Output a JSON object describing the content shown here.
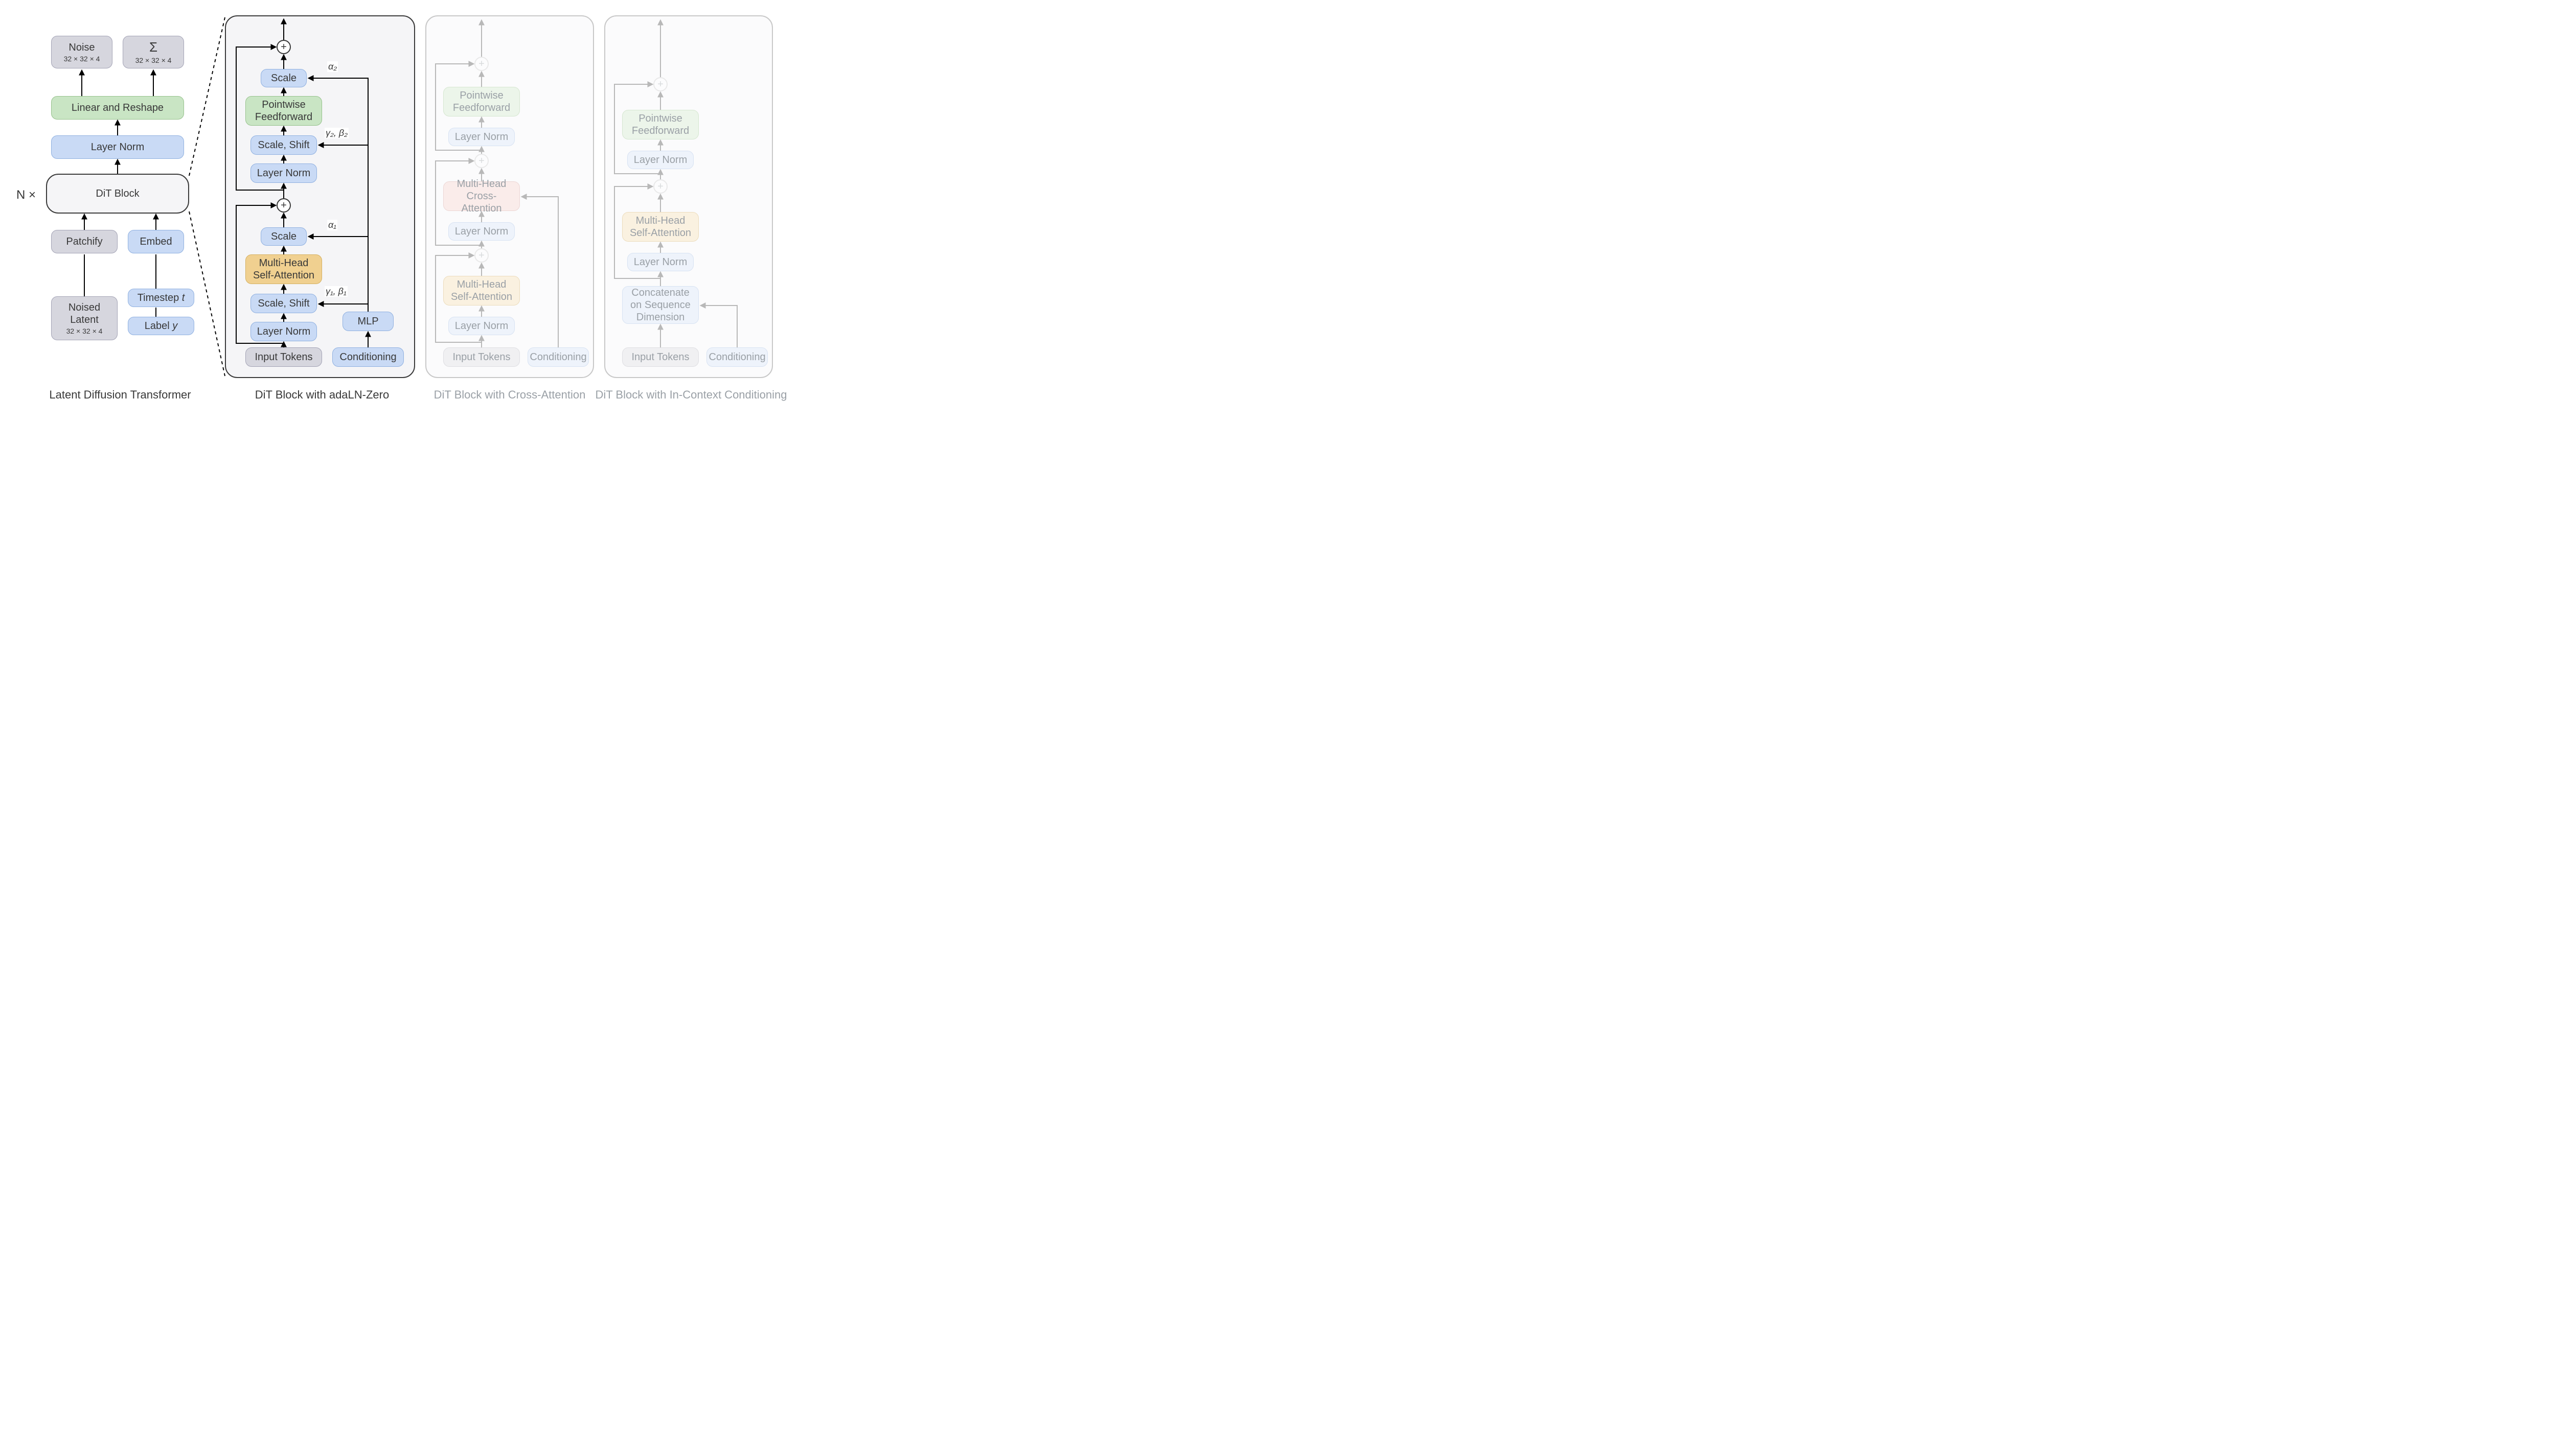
{
  "colors": {
    "gray_fill": "#d6d6de",
    "gray_border": "#a3a3b5",
    "blue_fill": "#c9daf5",
    "blue_border": "#8fb0e0",
    "green_fill": "#c9e5c4",
    "green_border": "#96c18c",
    "amber_fill": "#f0d090",
    "amber_border": "#d4af60",
    "red_fill": "#f2c6c4",
    "red_border": "#d49692",
    "frame_fill": "#f5f5f7",
    "frame_border": "#3a3a3a",
    "text": "#383838",
    "faded_text": "#9aa0a6",
    "faded_border": "#c8c8c8",
    "faded_blue_fill": "#eef3fb",
    "faded_blue_border": "#d7e2f2",
    "faded_green_fill": "#ecf5ea",
    "faded_green_border": "#d5e6d0",
    "faded_amber_fill": "#faf1e0",
    "faded_amber_border": "#ecdcbc",
    "faded_red_fill": "#faecea",
    "faded_red_border": "#ecd6d4",
    "faded_gray_fill": "#f0f0f2",
    "faded_gray_border": "#dedee2",
    "faded_frame_fill": "#fbfbfc",
    "wire": "#000000",
    "wire_faded": "#b8b8b8"
  },
  "labels": {
    "noise": "Noise",
    "sigma": "Σ",
    "dims": "32 × 32 × 4",
    "linear_reshape": "Linear and Reshape",
    "layer_norm": "Layer Norm",
    "dit_block": "DiT Block",
    "patchify": "Patchify",
    "embed": "Embed",
    "noised_latent": "Noised",
    "noised_latent2": "Latent",
    "timestep": "Timestep ",
    "timestep_var": "t",
    "label_cond": "Label ",
    "label_var": "y",
    "nx": "N ×",
    "scale": "Scale",
    "scale_shift": "Scale, Shift",
    "ffn": "Pointwise",
    "ffn2": "Feedforward",
    "mha_self": "Multi-Head",
    "mha_self2": "Self-Attention",
    "mha_cross": "Multi-Head",
    "mha_cross2": "Cross-Attention",
    "input_tokens": "Input Tokens",
    "conditioning": "Conditioning",
    "mlp": "MLP",
    "concat": "Concatenate",
    "concat2": "on Sequence",
    "concat3": "Dimension",
    "alpha1": "α₁",
    "alpha2": "α₂",
    "gb1": "γ₁, β₁",
    "gb2": "γ₂, β₂",
    "caption1": "Latent Diffusion Transformer",
    "caption2": "DiT Block with adaLN-Zero",
    "caption3": "DiT Block with Cross-Attention",
    "caption4": "DiT Block with In-Context Conditioning"
  }
}
